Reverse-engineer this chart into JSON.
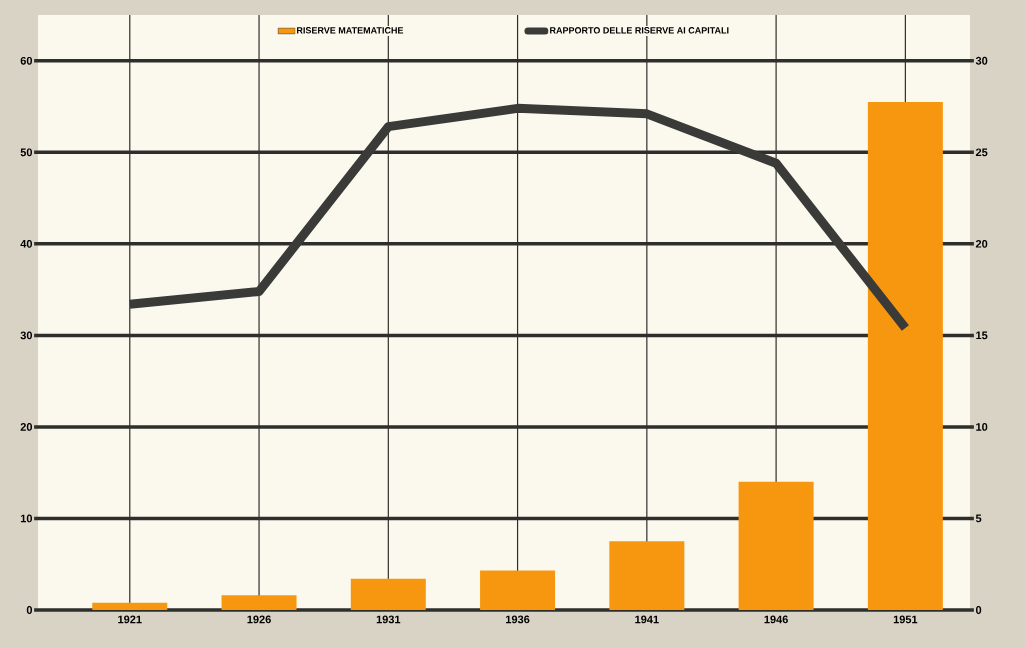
{
  "chart_data": {
    "type": "bar",
    "categories": [
      "1921",
      "1926",
      "1931",
      "1936",
      "1941",
      "1946",
      "1951"
    ],
    "series": [
      {
        "name": "RISERVE MATEMATICHE",
        "color": "#f7960f",
        "values": [
          0.8,
          1.6,
          3.4,
          4.3,
          7.5,
          14,
          55.5
        ]
      },
      {
        "name": "RAPPORTO DELLE RISERVE AI CAPITALI",
        "type": "line",
        "axis": "y2",
        "color": "#3a3b38",
        "values": [
          16.7,
          17.4,
          26.4,
          27.4,
          27.1,
          24.4,
          15.4
        ]
      }
    ],
    "ylim": [
      0,
      65
    ],
    "yticks": [
      0,
      10,
      20,
      30,
      40,
      50,
      60
    ],
    "y2lim": [
      0,
      32.5
    ],
    "y2ticks": [
      0,
      5,
      10,
      15,
      20,
      25,
      30
    ],
    "grid": true,
    "legend": "top",
    "marker": "none",
    "line_style": "solid"
  }
}
